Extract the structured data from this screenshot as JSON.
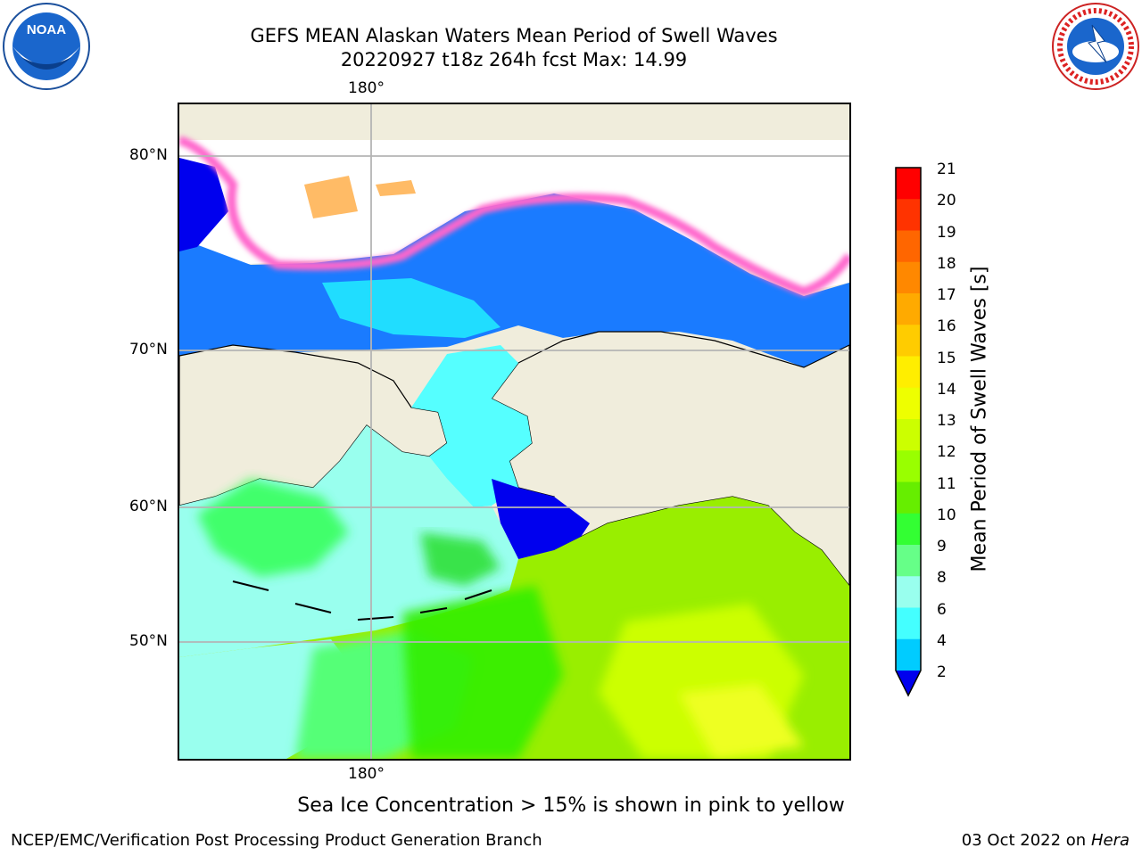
{
  "title": {
    "line1": "GEFS MEAN Alaskan Waters Mean Period of Swell Waves",
    "line2": "20220927 t18z 264h fcst   Max: 14.99"
  },
  "map": {
    "lon_label_top": "180°",
    "lon_label_bottom": "180°",
    "lat_labels": [
      "80°N",
      "70°N",
      "60°N",
      "50°N"
    ]
  },
  "colorbar": {
    "label": "Mean Period of Swell Waves [s]",
    "ticks": [
      "21",
      "20",
      "19",
      "18",
      "17",
      "16",
      "15",
      "14",
      "13",
      "12",
      "11",
      "10",
      "9",
      "8",
      "6",
      "4",
      "2"
    ],
    "colors": [
      "#ff0000",
      "#ff3300",
      "#ff6600",
      "#ff8800",
      "#ffaa00",
      "#ffcc00",
      "#ffee00",
      "#eeff00",
      "#ccff00",
      "#99ff00",
      "#66ee00",
      "#33ff33",
      "#66ff88",
      "#99ffee",
      "#44ffff",
      "#00ccff",
      "#0077ff",
      "#0000ee"
    ],
    "extend_color": "#0000ee"
  },
  "note": "Sea Ice Concentration > 15% is shown in pink to yellow",
  "footer": {
    "left": "NCEP/EMC/Verification Post Processing Product Generation Branch",
    "date": "03 Oct 2022 on",
    "host": "Hera"
  },
  "logos": {
    "noaa_text": "NOAA",
    "nws_text": "NATIONAL WEATHER SERVICE"
  }
}
